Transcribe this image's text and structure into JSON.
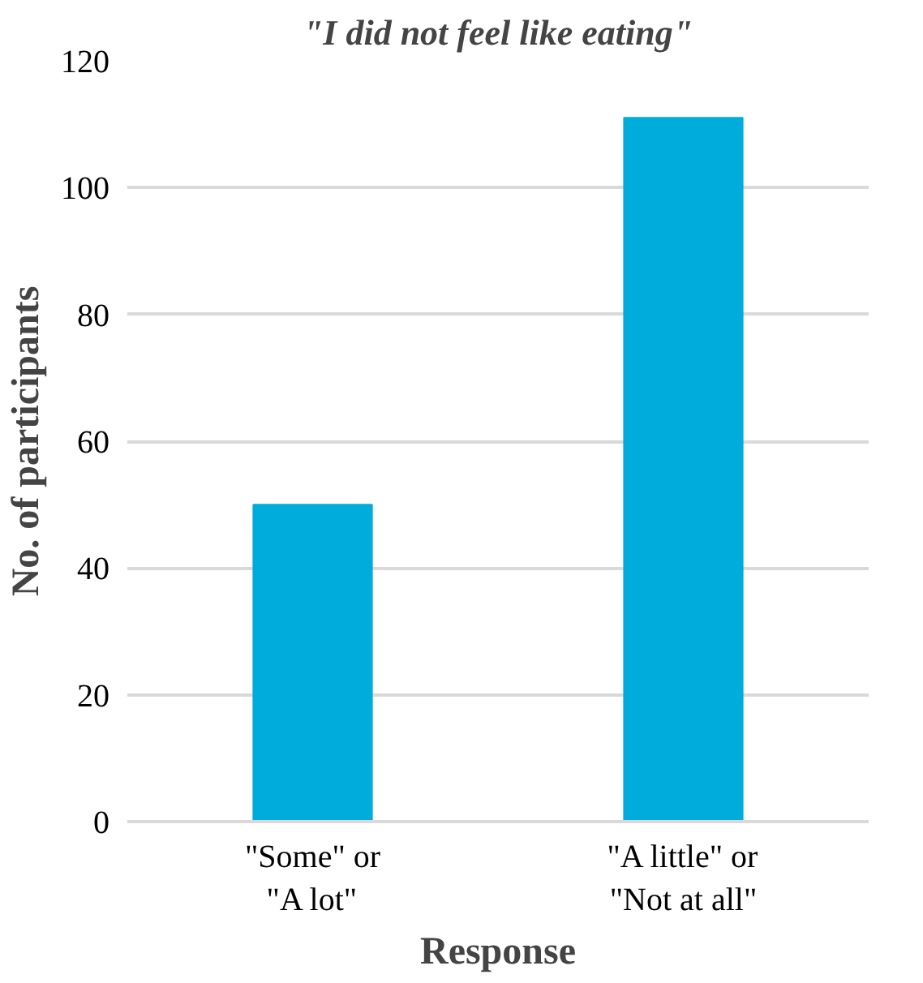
{
  "chart_data": {
    "type": "bar",
    "title": "\"I did not feel like eating\"",
    "xlabel": "Response",
    "ylabel": "No. of participants",
    "categories": [
      "\"Some\" or\n\"A lot\"",
      "\"A little\" or\n\"Not at all\""
    ],
    "values": [
      50,
      111
    ],
    "color": "#00acdc",
    "ylim": [
      0,
      120
    ],
    "yticks": [
      0,
      20,
      40,
      60,
      80,
      100,
      120
    ],
    "grid": "y"
  }
}
